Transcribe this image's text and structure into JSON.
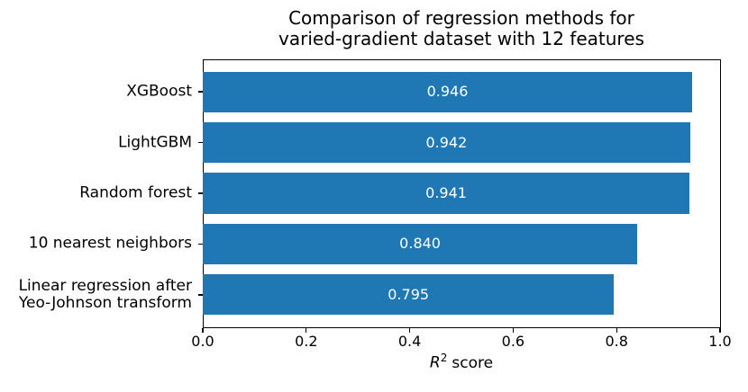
{
  "chart_data": {
    "type": "bar",
    "orientation": "horizontal",
    "title": "Comparison of regression methods for\nvaried-gradient dataset with 12 features",
    "categories": [
      "XGBoost",
      "LightGBM",
      "Random forest",
      "10 nearest neighbors",
      "Linear regression after\nYeo-Johnson transform"
    ],
    "values": [
      0.946,
      0.942,
      0.941,
      0.84,
      0.795
    ],
    "bar_labels": [
      "0.946",
      "0.942",
      "0.941",
      "0.840",
      "0.795"
    ],
    "xlabel": {
      "plain": "R² score",
      "variable": "R",
      "exponent": "2",
      "suffix": "score"
    },
    "ylabel": "",
    "xlim": [
      0.0,
      1.0
    ],
    "xticks": [
      0.0,
      0.2,
      0.4,
      0.6,
      0.8,
      1.0
    ],
    "xtick_labels": [
      "0.0",
      "0.2",
      "0.4",
      "0.6",
      "0.8",
      "1.0"
    ],
    "grid": false,
    "legend": false,
    "bar_height_fraction": 0.8,
    "colors": {
      "bar": "#1f77b4",
      "bar_label_text": "#ffffff",
      "axis_frame": "#000000",
      "text": "#000000"
    }
  }
}
